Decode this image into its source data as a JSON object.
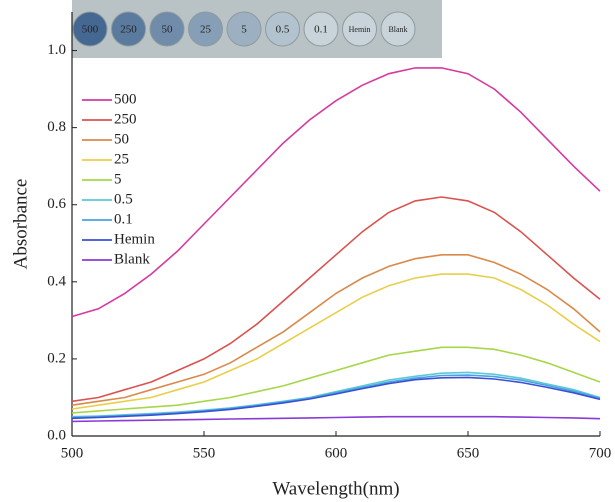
{
  "chart_data": {
    "type": "line",
    "x_label": "Wavelength(nm)",
    "y_label": "Absorbance",
    "x": [
      500,
      510,
      520,
      530,
      540,
      550,
      560,
      570,
      580,
      590,
      600,
      610,
      620,
      630,
      640,
      650,
      660,
      670,
      680,
      690,
      700
    ],
    "series": [
      {
        "name": "500",
        "color": "#d63a9e",
        "values": [
          0.31,
          0.33,
          0.37,
          0.42,
          0.48,
          0.55,
          0.62,
          0.69,
          0.76,
          0.82,
          0.87,
          0.91,
          0.94,
          0.955,
          0.955,
          0.94,
          0.9,
          0.84,
          0.77,
          0.7,
          0.635
        ]
      },
      {
        "name": "250",
        "color": "#d9534f",
        "values": [
          0.09,
          0.1,
          0.12,
          0.14,
          0.17,
          0.2,
          0.24,
          0.29,
          0.35,
          0.41,
          0.47,
          0.53,
          0.58,
          0.61,
          0.62,
          0.61,
          0.58,
          0.53,
          0.47,
          0.41,
          0.355
        ]
      },
      {
        "name": "50",
        "color": "#d98a4a",
        "values": [
          0.08,
          0.09,
          0.1,
          0.12,
          0.14,
          0.16,
          0.19,
          0.23,
          0.27,
          0.32,
          0.37,
          0.41,
          0.44,
          0.46,
          0.47,
          0.47,
          0.45,
          0.42,
          0.38,
          0.33,
          0.27
        ]
      },
      {
        "name": "25",
        "color": "#e8cf4a",
        "values": [
          0.07,
          0.08,
          0.09,
          0.1,
          0.12,
          0.14,
          0.17,
          0.2,
          0.24,
          0.28,
          0.32,
          0.36,
          0.39,
          0.41,
          0.42,
          0.42,
          0.41,
          0.38,
          0.34,
          0.29,
          0.245
        ]
      },
      {
        "name": "5",
        "color": "#a8d64a",
        "values": [
          0.06,
          0.065,
          0.07,
          0.075,
          0.08,
          0.09,
          0.1,
          0.115,
          0.13,
          0.15,
          0.17,
          0.19,
          0.21,
          0.22,
          0.23,
          0.23,
          0.225,
          0.21,
          0.19,
          0.165,
          0.14
        ]
      },
      {
        "name": "0.5",
        "color": "#5bc8d8",
        "values": [
          0.05,
          0.052,
          0.055,
          0.058,
          0.062,
          0.067,
          0.073,
          0.081,
          0.09,
          0.1,
          0.115,
          0.13,
          0.145,
          0.155,
          0.163,
          0.165,
          0.16,
          0.15,
          0.135,
          0.12,
          0.1
        ]
      },
      {
        "name": "0.1",
        "color": "#4aa3df",
        "values": [
          0.048,
          0.05,
          0.053,
          0.056,
          0.06,
          0.065,
          0.071,
          0.079,
          0.088,
          0.098,
          0.112,
          0.126,
          0.14,
          0.15,
          0.157,
          0.158,
          0.154,
          0.145,
          0.131,
          0.116,
          0.098
        ]
      },
      {
        "name": "Hemin",
        "color": "#3b4fd6",
        "values": [
          0.046,
          0.048,
          0.051,
          0.054,
          0.058,
          0.063,
          0.069,
          0.077,
          0.086,
          0.096,
          0.109,
          0.123,
          0.136,
          0.146,
          0.151,
          0.152,
          0.148,
          0.139,
          0.126,
          0.112,
          0.095
        ]
      },
      {
        "name": "Blank",
        "color": "#8a3bd6",
        "values": [
          0.038,
          0.039,
          0.04,
          0.041,
          0.042,
          0.043,
          0.044,
          0.045,
          0.046,
          0.047,
          0.048,
          0.049,
          0.05,
          0.05,
          0.05,
          0.05,
          0.05,
          0.049,
          0.048,
          0.047,
          0.045
        ]
      }
    ],
    "inset_labels": [
      "500",
      "250",
      "50",
      "25",
      "5",
      "0.5",
      "0.1",
      "Hemin",
      "Blank"
    ],
    "xlim": [
      500,
      700
    ],
    "xticks": [
      500,
      550,
      600,
      650,
      700
    ],
    "ylim": [
      0,
      1.1
    ],
    "yticks": [
      {
        "value": 0,
        "label": "0.0"
      },
      0.2,
      0.4,
      0.6,
      0.8,
      {
        "value": 1.0,
        "label": "1.0"
      }
    ],
    "legend": "upper-left",
    "grid": false
  }
}
